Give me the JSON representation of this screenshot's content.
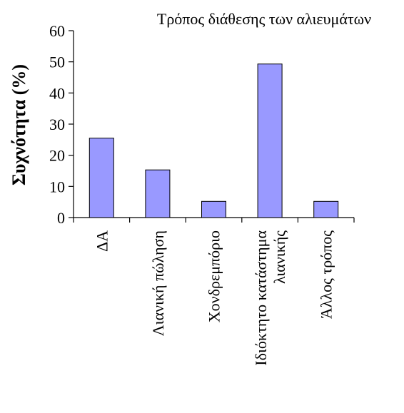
{
  "chart_data": {
    "type": "bar",
    "title": "Τρόπος διάθεσης των αλιευμάτων",
    "xlabel": "",
    "ylabel": "Συχνότητα (%)",
    "ylim": [
      0,
      60
    ],
    "yticks": [
      0,
      10,
      20,
      30,
      40,
      50,
      60
    ],
    "categories": [
      [
        "ΔΑ"
      ],
      [
        "Λιανική πώληση"
      ],
      [
        "Χονδρεμπόριο"
      ],
      [
        "Ιδιόκτητο κατάστημα",
        "λιανικής"
      ],
      [
        "Άλλος τρόπος"
      ]
    ],
    "values": [
      25.5,
      15.3,
      5.2,
      49.3,
      5.2
    ],
    "colors": {
      "bar_fill": "#9999ff",
      "bar_stroke": "#000000",
      "axis": "#000000"
    },
    "grid": false,
    "legend": "none"
  }
}
